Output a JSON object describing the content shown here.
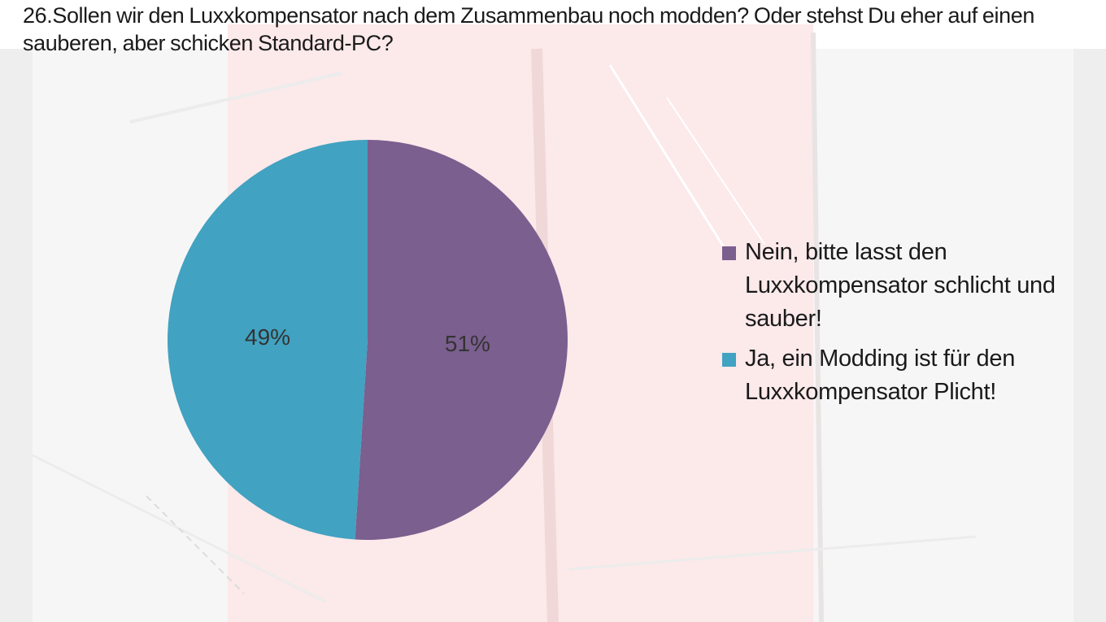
{
  "chart_data": {
    "type": "pie",
    "title": "26.Sollen wir den Luxxkompensator nach dem Zusammenbau noch modden? Oder stehst Du eher auf einen sauberen, aber schicken Standard-PC?",
    "slices": [
      {
        "label": "Nein, bitte lasst den Luxxkompensator schlicht und sauber!",
        "value": 51,
        "data_label": "51%",
        "color": "#7b5f8f"
      },
      {
        "label": "Ja, ein Modding ist für den Luxxkompensator Plicht!",
        "value": 49,
        "data_label": "49%",
        "color": "#41a2c1"
      }
    ],
    "legend_position": "right"
  }
}
